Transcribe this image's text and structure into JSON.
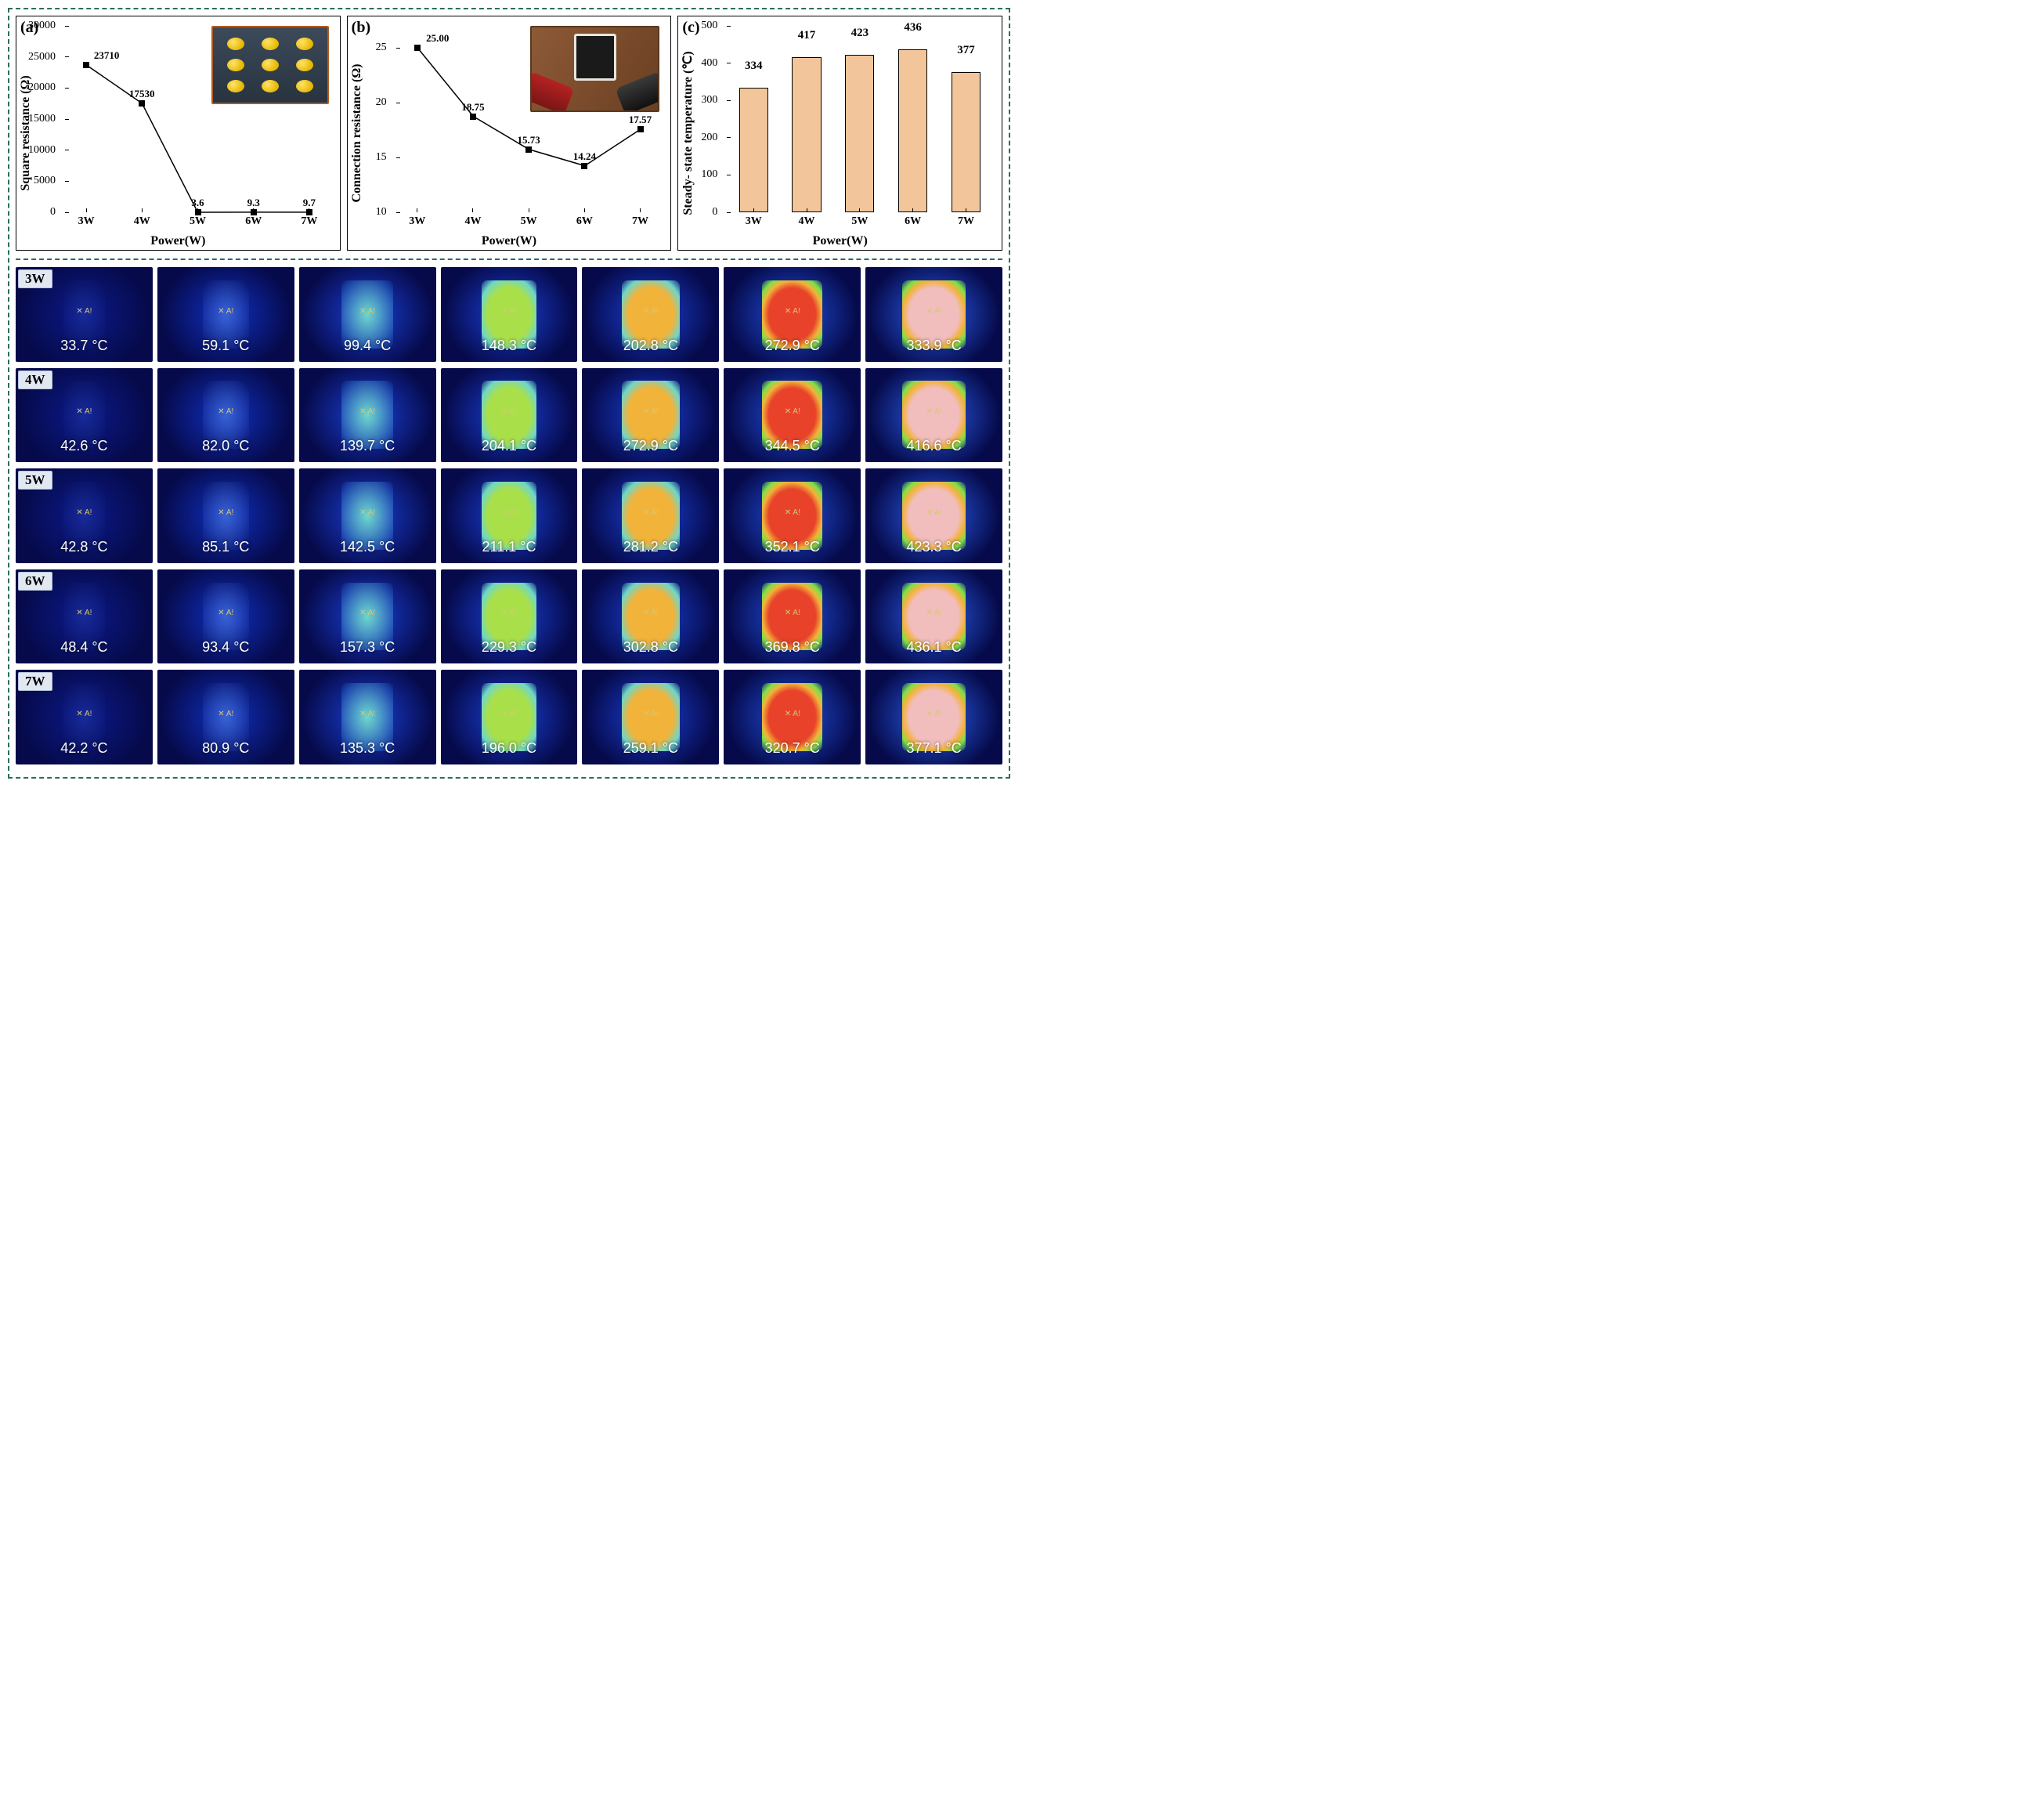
{
  "top_panels": {
    "a": {
      "label": "(a)",
      "type": "line",
      "xlabel": "Power(W)",
      "ylabel": "Square resistance (Ω)",
      "x_categories": [
        "3W",
        "4W",
        "5W",
        "6W",
        "7W"
      ],
      "y_ticks": [
        0,
        5000,
        10000,
        15000,
        20000,
        25000,
        30000
      ],
      "values": [
        23710,
        17530,
        3.6,
        9.3,
        9.7
      ],
      "point_labels": [
        "23710",
        "17530",
        "3.6",
        "9.3",
        "9.7"
      ],
      "line_color": "#000000",
      "marker_color": "#000000",
      "label_fontsize": 16,
      "tick_fontsize": 14,
      "ylim": [
        0,
        30000
      ],
      "background_color": "#ffffff",
      "inset": {
        "type": "dots_on_fabric",
        "dot_color": "#e6b800",
        "bg_color": "#3c4a5a",
        "border_color": "#b15a1e",
        "rows": 3,
        "cols": 3
      }
    },
    "b": {
      "label": "(b)",
      "type": "line",
      "xlabel": "Power(W)",
      "ylabel": "Connection resistance (Ω)",
      "x_categories": [
        "3W",
        "4W",
        "5W",
        "6W",
        "7W"
      ],
      "y_ticks": [
        10,
        15,
        20,
        25
      ],
      "values": [
        25.0,
        18.75,
        15.73,
        14.24,
        17.57
      ],
      "point_labels": [
        "25.00",
        "18.75",
        "15.73",
        "14.24",
        "17.57"
      ],
      "line_color": "#000000",
      "marker_color": "#000000",
      "label_fontsize": 16,
      "tick_fontsize": 14,
      "ylim": [
        10,
        27
      ],
      "background_color": "#ffffff",
      "inset": {
        "type": "clips_on_sample",
        "clip_colors": [
          "#b52222",
          "#222222"
        ],
        "sample_color": "#1a1a1a",
        "bg_color": "#7a4a2b"
      }
    },
    "c": {
      "label": "(c)",
      "type": "bar",
      "xlabel": "Power(W)",
      "ylabel": "Steady- state temperature (℃)",
      "x_categories": [
        "3W",
        "4W",
        "5W",
        "6W",
        "7W"
      ],
      "y_ticks": [
        0,
        100,
        200,
        300,
        400,
        500
      ],
      "values": [
        334,
        417,
        423,
        436,
        377
      ],
      "bar_labels": [
        "334",
        "417",
        "423",
        "436",
        "377"
      ],
      "bar_color": "#f2c69a",
      "bar_border": "#000000",
      "bar_width": 0.55,
      "label_fontsize": 16,
      "tick_fontsize": 14,
      "ylim": [
        0,
        500
      ],
      "background_color": "#ffffff"
    }
  },
  "panel_d": {
    "label": "(d)",
    "row_tags": [
      "3W",
      "4W",
      "5W",
      "6W",
      "7W"
    ],
    "cols": 7,
    "marker_text": "✕ A!",
    "marker_color": "#d9c773",
    "text_color": "#ffffff",
    "temps": [
      [
        "33.7 °C",
        "59.1 °C",
        "99.4 °C",
        "148.3 °C",
        "202.8 °C",
        "272.9 °C",
        "333.9 °C"
      ],
      [
        "42.6 °C",
        "82.0 °C",
        "139.7 °C",
        "204.1 °C",
        "272.9 °C",
        "344.5 °C",
        "416.6 °C"
      ],
      [
        "42.8 °C",
        "85.1 °C",
        "142.5 °C",
        "211.1 °C",
        "281.2 °C",
        "352.1 °C",
        "423.3 °C"
      ],
      [
        "48.4 °C",
        "93.4 °C",
        "157.3 °C",
        "229.3 °C",
        "302.8 °C",
        "369.8 °C",
        "436.1 °C"
      ],
      [
        "42.2 °C",
        "80.9 °C",
        "135.3 °C",
        "196.0 °C",
        "259.1 °C",
        "320.7 °C",
        "377.1 °C"
      ]
    ],
    "heat_levels": [
      [
        0,
        1,
        2,
        3,
        4,
        5,
        6
      ],
      [
        0,
        1,
        2,
        3,
        4,
        5,
        6
      ],
      [
        0,
        1,
        2,
        3,
        4,
        5,
        6
      ],
      [
        0,
        1,
        2,
        3,
        4,
        5,
        6
      ],
      [
        0,
        1,
        2,
        3,
        4,
        5,
        6
      ]
    ],
    "level_styles": [
      {
        "bg_outer": "#060a4a",
        "bg_mid": "#0b1a8a",
        "core": "rgba(60,90,200,0.25)",
        "core_w": 0.3
      },
      {
        "bg_outer": "#060a4a",
        "bg_mid": "#1030c0",
        "core": "rgba(90,140,230,0.55)",
        "core_w": 0.34
      },
      {
        "bg_outer": "#060a4a",
        "bg_mid": "#1a40d8",
        "core": "#6fd7c8",
        "core_w": 0.38
      },
      {
        "bg_outer": "#060a4a",
        "bg_mid": "#1a40d8",
        "core": "#a9e04a",
        "core_w": 0.4
      },
      {
        "bg_outer": "#060a4a",
        "bg_mid": "#1a40d8",
        "core": "#f2b33a",
        "core_w": 0.42
      },
      {
        "bg_outer": "#060a4a",
        "bg_mid": "#2050e0",
        "core": "#e8432a",
        "core_w": 0.44
      },
      {
        "bg_outer": "#060a4a",
        "bg_mid": "#2a60f0",
        "core": "#f2bdbd",
        "core_w": 0.46
      }
    ],
    "cell_bg_base": "#050740"
  }
}
